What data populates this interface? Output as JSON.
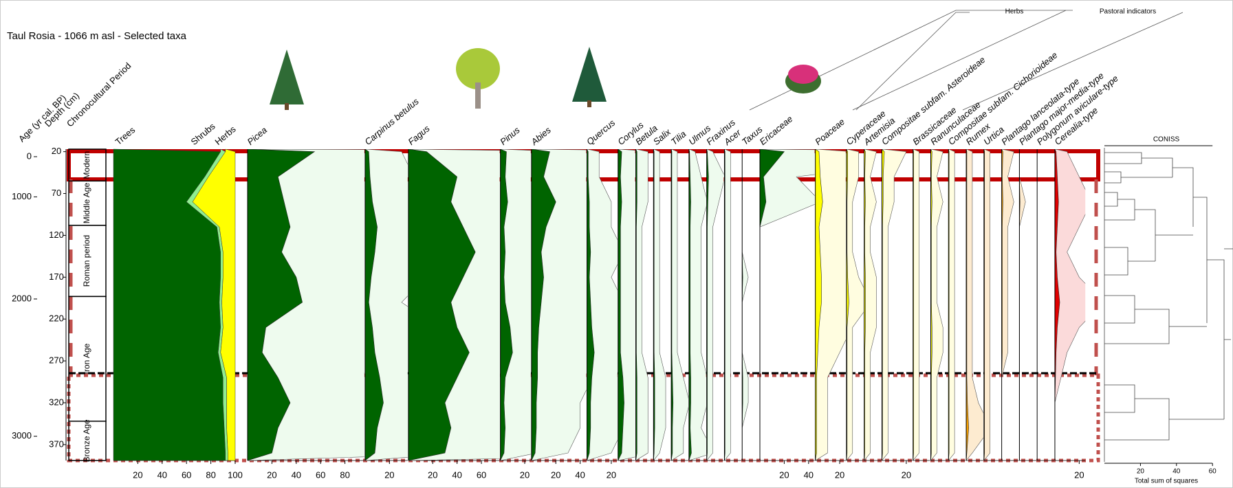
{
  "chart_data": {
    "type": "pollen",
    "title": "Taul Rosia - 1066 m asl - Selected taxa",
    "age_label": "Age (yr cal. BP)",
    "depth_label": "Depth (cm)",
    "period_label": "Chronocultural Period",
    "ylim": [
      17,
      389
    ],
    "yticks": [
      20,
      70,
      120,
      170,
      220,
      270,
      320,
      370
    ],
    "age_ticks": [
      {
        "value": 26,
        "label": "0"
      },
      {
        "value": 74,
        "label": "1000"
      },
      {
        "value": 196,
        "label": "2000"
      },
      {
        "value": 360,
        "label": "3000"
      }
    ],
    "periods": [
      {
        "name": "Modern",
        "top": 17,
        "bottom": 55
      },
      {
        "name": "Middle Age",
        "top": 55,
        "bottom": 108
      },
      {
        "name": "Roman period",
        "top": 108,
        "bottom": 193
      },
      {
        "name": "Iron Age",
        "top": 193,
        "bottom": 342
      },
      {
        "name": "Bronze Age",
        "top": 342,
        "bottom": 389
      }
    ],
    "groups": [
      "Herbs",
      "Pastoral indicators"
    ],
    "exaggeration": 10,
    "depths": [
      20,
      50,
      80,
      110,
      140,
      170,
      200,
      230,
      260,
      290,
      320,
      350,
      380
    ],
    "summary": {
      "xlim": [
        0,
        100
      ],
      "xticks": [
        20,
        40,
        60,
        80,
        100
      ],
      "series": [
        {
          "name": "Trees",
          "color": "#006400",
          "values": [
            88,
            75,
            60,
            85,
            88,
            88,
            87,
            88,
            86,
            90,
            90,
            91,
            92
          ]
        },
        {
          "name": "Shrubs",
          "color": "#90ee90",
          "values": [
            4,
            3,
            5,
            2,
            2,
            2,
            2,
            2,
            2,
            3,
            3,
            2,
            2
          ]
        },
        {
          "name": "Herbs",
          "color": "#ffff00",
          "values": [
            8,
            22,
            35,
            13,
            10,
            10,
            11,
            10,
            12,
            7,
            7,
            7,
            6
          ]
        }
      ]
    },
    "taxa": [
      {
        "name": "Picea",
        "color": "#006400",
        "light": "#eefbee",
        "xlim": [
          0,
          96
        ],
        "xticks": [
          20,
          40,
          60,
          80
        ],
        "values": [
          55,
          25,
          30,
          35,
          28,
          40,
          45,
          15,
          12,
          25,
          35,
          25,
          20
        ]
      },
      {
        "name": "Carpinus betulus",
        "color": "#006400",
        "light": "#eefbee",
        "xlim": [
          0,
          35
        ],
        "xticks": [
          20
        ],
        "values": [
          3,
          4,
          6,
          10,
          8,
          5,
          3,
          6,
          8,
          12,
          15,
          10,
          8
        ]
      },
      {
        "name": "Fagus",
        "color": "#006400",
        "light": "#eefbee",
        "xlim": [
          0,
          75
        ],
        "xticks": [
          20,
          40,
          60
        ],
        "values": [
          15,
          40,
          35,
          45,
          55,
          45,
          35,
          40,
          50,
          40,
          30,
          35,
          30
        ]
      },
      {
        "name": "Pinus",
        "color": "#006400",
        "light": "#eefbee",
        "xlim": [
          0,
          25
        ],
        "xticks": [
          20
        ],
        "values": [
          5,
          4,
          6,
          3,
          4,
          3,
          4,
          8,
          10,
          4,
          3,
          4,
          3
        ]
      },
      {
        "name": "Abies",
        "color": "#006400",
        "light": "#eefbee",
        "xlim": [
          0,
          45
        ],
        "xticks": [
          20,
          40
        ],
        "values": [
          15,
          10,
          20,
          12,
          8,
          10,
          8,
          6,
          5,
          5,
          4,
          4,
          3
        ]
      },
      {
        "name": "Quercus",
        "color": "#006400",
        "light": "#eefbee",
        "xlim": [
          0,
          25
        ],
        "xticks": [
          20
        ],
        "values": [
          1,
          1,
          2,
          2,
          3,
          2,
          3,
          4,
          6,
          4,
          3,
          3,
          2
        ]
      },
      {
        "name": "Corylus",
        "color": "#006400",
        "light": "#eefbee",
        "xlim": [
          0,
          14
        ],
        "xticks": [],
        "values": [
          3,
          2,
          3,
          2,
          2,
          2,
          2,
          2,
          2,
          4,
          5,
          4,
          3
        ]
      },
      {
        "name": "Betula",
        "color": "#006400",
        "light": "#eefbee",
        "xlim": [
          0,
          14
        ],
        "xticks": [],
        "values": [
          1,
          1,
          1,
          0.5,
          0.5,
          0.5,
          0.5,
          0.5,
          0.5,
          1,
          1,
          1,
          1
        ]
      },
      {
        "name": "Salix",
        "color": "#006400",
        "light": "#eefbee",
        "xlim": [
          0,
          14
        ],
        "xticks": [],
        "values": [
          0.5,
          0.5,
          0.5,
          0.5,
          0.5,
          0.5,
          0.5,
          0.5,
          0.5,
          1,
          1,
          1,
          0.5
        ]
      },
      {
        "name": "Tilia",
        "color": "#006400",
        "light": "#eefbee",
        "xlim": [
          0,
          14
        ],
        "xticks": [],
        "values": [
          0.5,
          0.5,
          0.5,
          0.5,
          0.5,
          0.5,
          0.5,
          0.5,
          0.5,
          1,
          1.5,
          1,
          1
        ]
      },
      {
        "name": "Ulmus",
        "color": "#006400",
        "light": "#eefbee",
        "xlim": [
          0,
          14
        ],
        "xticks": [],
        "values": [
          0.5,
          1,
          1.5,
          1,
          1,
          1,
          1,
          1,
          1,
          1.5,
          1.5,
          1,
          2
        ]
      },
      {
        "name": "Fraxinus",
        "color": "#006400",
        "light": "#eefbee",
        "xlim": [
          0,
          14
        ],
        "xticks": [],
        "values": [
          0.5,
          1.5,
          1,
          0.5,
          0.5,
          0.5,
          0.5,
          0.5,
          0.5,
          0.5,
          0.5,
          0.5,
          0.5
        ]
      },
      {
        "name": "Acer",
        "color": "#006400",
        "light": "#eefbee",
        "xlim": [
          0,
          14
        ],
        "xticks": [],
        "values": [
          0.5,
          0.5,
          0.5,
          0.5,
          0.5,
          0.5,
          0.5,
          0.5,
          0.5,
          0.5,
          0.5,
          0.5,
          0.5
        ]
      },
      {
        "name": "Taxus",
        "color": "#006400",
        "light": "#eefbee",
        "xlim": [
          0,
          14
        ],
        "xticks": [],
        "values": [
          0,
          0,
          0,
          0,
          0,
          0.5,
          0,
          0,
          0,
          0.5,
          0.5,
          0,
          0
        ]
      },
      {
        "name": "Ericaceae",
        "color": "#006400",
        "light": "#eefbee",
        "xlim": [
          0,
          45
        ],
        "xticks": [
          20,
          40
        ],
        "values": [
          20,
          3,
          5,
          0,
          0,
          0,
          0,
          0,
          0,
          0,
          0,
          0,
          0
        ]
      },
      {
        "name": "Poaceae",
        "color": "#ffff00",
        "light": "#fffde0",
        "xlim": [
          0,
          25
        ],
        "xticks": [
          20
        ],
        "values": [
          3,
          4,
          6,
          3,
          4,
          5,
          5,
          3,
          2,
          1,
          1,
          1,
          1
        ]
      },
      {
        "name": "Cyperaceae",
        "color": "#ffff00",
        "light": "#fffde0",
        "xlim": [
          0,
          14
        ],
        "xticks": [],
        "values": [
          1,
          1,
          0.5,
          0.5,
          0.5,
          1,
          2,
          0.5,
          0.5,
          0.5,
          0.5,
          0.5,
          0.5
        ]
      },
      {
        "name": "Artemisia",
        "color": "#ffff00",
        "light": "#fffde0",
        "xlim": [
          0,
          14
        ],
        "xticks": [],
        "values": [
          1,
          0.5,
          1,
          0.5,
          0.5,
          1,
          1,
          1,
          0.5,
          0.5,
          0.5,
          0.5,
          0.5
        ]
      },
      {
        "name": "Compositae subfam. Asteroideae",
        "color": "#ffff00",
        "light": "#fffde0",
        "xlim": [
          0,
          25
        ],
        "xticks": [
          20
        ],
        "values": [
          2,
          1,
          1,
          0.5,
          0.5,
          0.5,
          0.5,
          0.5,
          0.5,
          0.5,
          0.5,
          0.5,
          0.5
        ]
      },
      {
        "name": "Brassicaceae",
        "color": "#ffff00",
        "light": "#fffde0",
        "xlim": [
          0,
          14
        ],
        "xticks": [],
        "values": [
          0.5,
          0.5,
          0.5,
          0.5,
          0.5,
          0.5,
          0.5,
          0.5,
          0.5,
          0.5,
          0.5,
          0.5,
          0.5
        ]
      },
      {
        "name": "Ranunculaceae",
        "color": "#ffff00",
        "light": "#fffde0",
        "xlim": [
          0,
          14
        ],
        "xticks": [],
        "values": [
          1,
          0.5,
          1,
          0.5,
          0.5,
          0.5,
          0.5,
          1,
          1,
          0.5,
          0.5,
          0.5,
          0.5
        ]
      },
      {
        "name": "Compositae subfam. Cichorioideae",
        "color": "#ffff00",
        "light": "#fffde0",
        "xlim": [
          0,
          14
        ],
        "xticks": [],
        "values": [
          0.5,
          0.5,
          0.5,
          0.5,
          0.5,
          0.5,
          0.5,
          0.5,
          0.5,
          0.5,
          0.5,
          0.5,
          0.5
        ]
      },
      {
        "name": "Rumex",
        "color": "#f5a000",
        "light": "#fdebd0",
        "xlim": [
          0,
          14
        ],
        "xticks": [],
        "values": [
          0.5,
          0.5,
          0.5,
          0.5,
          0.5,
          0.5,
          0.5,
          0.5,
          0.5,
          0.5,
          1,
          2,
          0.5
        ]
      },
      {
        "name": "Urtica",
        "color": "#f5a000",
        "light": "#fdebd0",
        "xlim": [
          0,
          14
        ],
        "xticks": [],
        "values": [
          0.5,
          0.5,
          0.5,
          0.5,
          0.5,
          0.5,
          0.5,
          0.5,
          0.5,
          0.5,
          0.5,
          0.5,
          0.5
        ]
      },
      {
        "name": "Plantago lanceolata-type",
        "color": "#f5a000",
        "light": "#fdebd0",
        "xlim": [
          0,
          14
        ],
        "xticks": [],
        "values": [
          1,
          0.5,
          1,
          0.5,
          0.5,
          0.5,
          0.5,
          0.5,
          0.5,
          0,
          0,
          0,
          0
        ]
      },
      {
        "name": "Plantago major-media-type",
        "color": "#f5a000",
        "light": "#fdebd0",
        "xlim": [
          0,
          14
        ],
        "xticks": [],
        "values": [
          0,
          0,
          0.5,
          0,
          0,
          0,
          0,
          0,
          0,
          0,
          0,
          0,
          0
        ]
      },
      {
        "name": "Polygonum aviculare-type",
        "color": "#f5a000",
        "light": "#fdebd0",
        "xlim": [
          0,
          14
        ],
        "xticks": [],
        "values": [
          0,
          0,
          0,
          0,
          0,
          0,
          0,
          0,
          0,
          0,
          0,
          0,
          0
        ]
      },
      {
        "name": "Cerealia-type",
        "color": "#e00000",
        "light": "#fbdada",
        "xlim": [
          0,
          25
        ],
        "xticks": [
          20
        ],
        "values": [
          1,
          2,
          3,
          2,
          1,
          2,
          4,
          2,
          1,
          0.5,
          0,
          0,
          0
        ]
      }
    ],
    "coniss": {
      "title": "CONISS",
      "xlabel": "Total sum of squares",
      "xlim": [
        0,
        60
      ],
      "xticks": [
        20,
        40,
        60
      ]
    }
  }
}
